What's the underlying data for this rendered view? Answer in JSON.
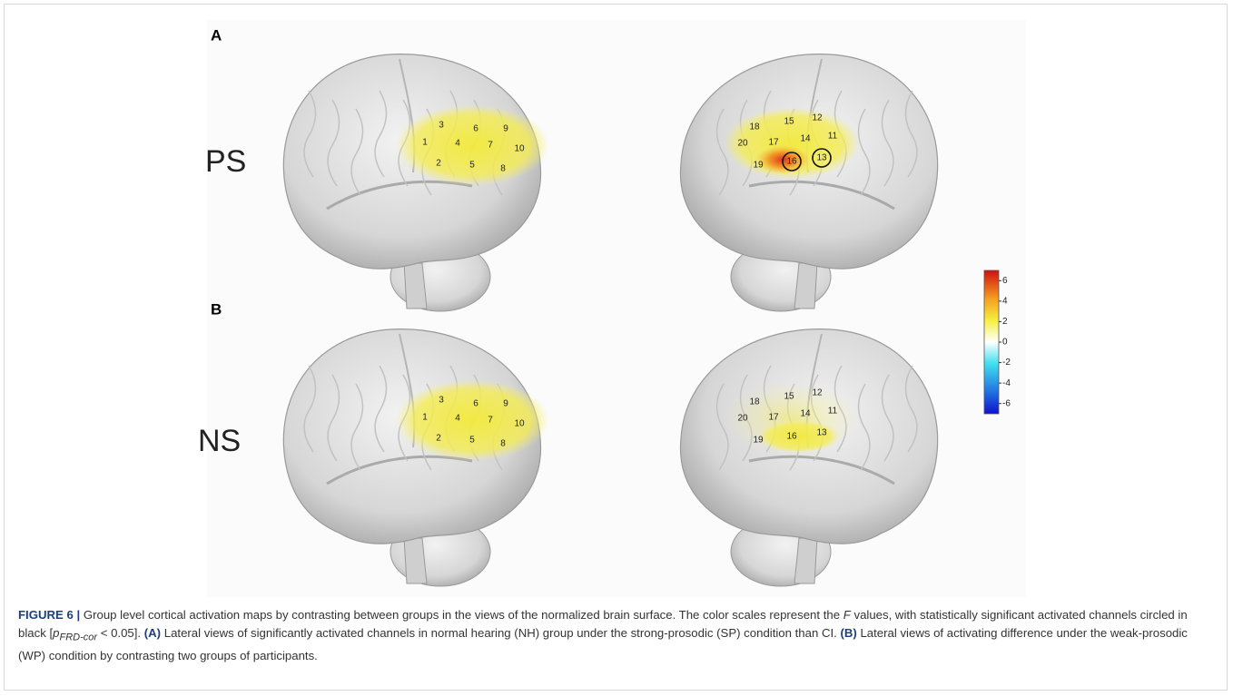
{
  "panels": [
    {
      "label": "A",
      "row_label": "PS",
      "left_channels": [
        1,
        2,
        3,
        4,
        5,
        6,
        7,
        8,
        9,
        10
      ],
      "right_channels": [
        18,
        15,
        12,
        20,
        17,
        14,
        11,
        19,
        16,
        13
      ]
    },
    {
      "label": "B",
      "row_label": "NS",
      "left_channels": [
        1,
        2,
        3,
        4,
        5,
        6,
        7,
        8,
        9,
        10
      ],
      "right_channels": [
        18,
        15,
        12,
        20,
        17,
        14,
        11,
        19,
        16,
        13
      ]
    }
  ],
  "colorbar": {
    "lim": [
      -7,
      7
    ],
    "ticks": [
      6,
      4,
      2,
      0,
      -2,
      -4,
      -6
    ]
  },
  "caption": {
    "label": "FIGURE 6 |",
    "text1": "Group level cortical activation maps by contrasting between groups in the views of the normalized brain surface. The color scales represent the",
    "f": "F",
    "text2": "values, with statistically significant activated channels circled in black [",
    "p": "p",
    "sub": "FRD-cor",
    "text3": "< 0.05].",
    "a": "(A)",
    "a_text": "Lateral views of significantly activated channels in normal hearing (NH) group under the strong-prosodic (SP) condition than CI.",
    "b": "(B)",
    "b_text": "Lateral views of activating difference under the weak-prosodic (WP) condition by contrasting two groups of participants."
  }
}
